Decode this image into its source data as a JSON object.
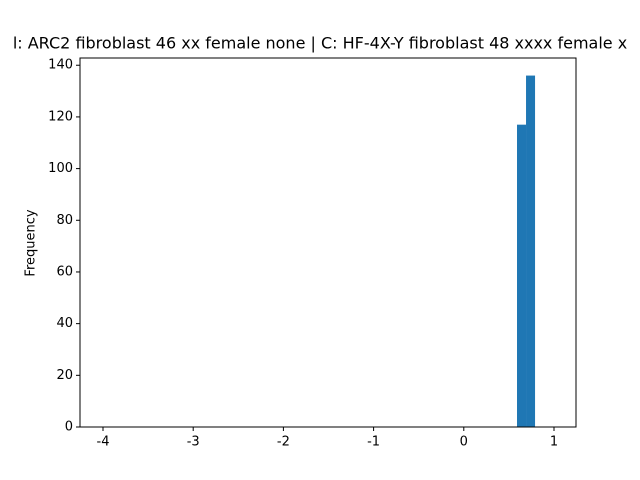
{
  "chart_data": {
    "type": "histogram",
    "title": "l: ARC2 fibroblast 46 xx female none | C: HF-4X-Y fibroblast 48 xxxx female x",
    "y_label": "Frequency",
    "bins": [
      0.59,
      0.69,
      0.79
    ],
    "values": [
      117,
      136
    ],
    "color": "#1f77b4",
    "xlim": [
      -4.255,
      1.244
    ],
    "ylim": [
      0,
      142.8
    ],
    "xticks": [
      -4,
      -3,
      -2,
      -1,
      0,
      1
    ],
    "yticks": [
      0,
      20,
      40,
      60,
      80,
      100,
      120,
      140
    ]
  }
}
